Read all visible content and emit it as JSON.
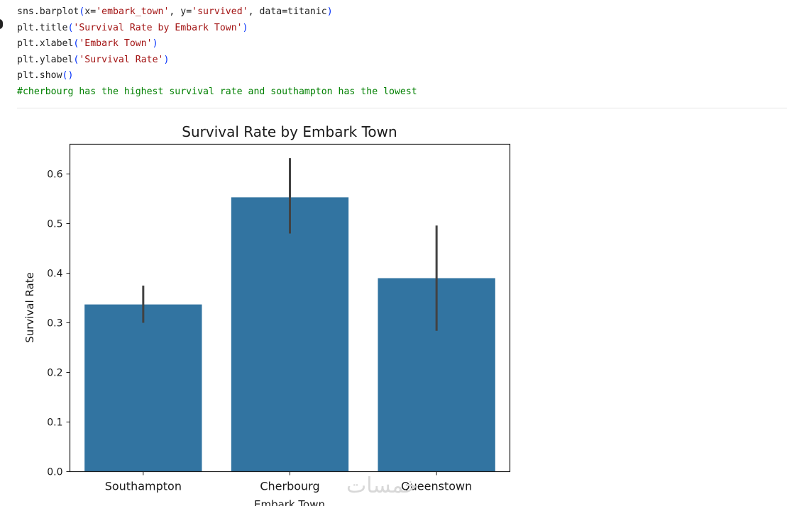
{
  "code_lines": [
    [
      {
        "t": "sns.barplot"
      },
      {
        "t": "(",
        "c": "br"
      },
      {
        "t": "x="
      },
      {
        "t": "'embark_town'",
        "c": "str"
      },
      {
        "t": ", y="
      },
      {
        "t": "'survived'",
        "c": "str"
      },
      {
        "t": ", data=titanic"
      },
      {
        "t": ")",
        "c": "br"
      }
    ],
    [
      {
        "t": "plt.title"
      },
      {
        "t": "(",
        "c": "br"
      },
      {
        "t": "'Survival Rate by Embark Town'",
        "c": "str"
      },
      {
        "t": ")",
        "c": "br"
      }
    ],
    [
      {
        "t": "plt.xlabel"
      },
      {
        "t": "(",
        "c": "br"
      },
      {
        "t": "'Embark Town'",
        "c": "str"
      },
      {
        "t": ")",
        "c": "br"
      }
    ],
    [
      {
        "t": "plt.ylabel"
      },
      {
        "t": "(",
        "c": "br"
      },
      {
        "t": "'Survival Rate'",
        "c": "str"
      },
      {
        "t": ")",
        "c": "br"
      }
    ],
    [
      {
        "t": "plt.show"
      },
      {
        "t": "()",
        "c": "br"
      }
    ],
    [
      {
        "t": "#cherbourg has the highest survival rate and southampton has the lowest",
        "c": "cm"
      }
    ]
  ],
  "watermark": "خمسات",
  "colors": {
    "bar": "#3274a1",
    "errorbar": "#424242",
    "string": "#a31515",
    "bracket": "#0431fa",
    "comment": "#008000"
  },
  "chart_data": {
    "type": "bar",
    "title": "Survival Rate by Embark Town",
    "xlabel": "Embark Town",
    "ylabel": "Survival Rate",
    "categories": [
      "Southampton",
      "Cherbourg",
      "Queenstown"
    ],
    "values": [
      0.337,
      0.553,
      0.39
    ],
    "ci_low": [
      0.3,
      0.48,
      0.284
    ],
    "ci_high": [
      0.375,
      0.632,
      0.496
    ],
    "ylim": [
      0,
      0.66
    ],
    "yticks": [
      0.0,
      0.1,
      0.2,
      0.3,
      0.4,
      0.5,
      0.6
    ],
    "ytick_labels": [
      "0.0",
      "0.1",
      "0.2",
      "0.3",
      "0.4",
      "0.5",
      "0.6"
    ],
    "grid": false,
    "legend": false
  }
}
